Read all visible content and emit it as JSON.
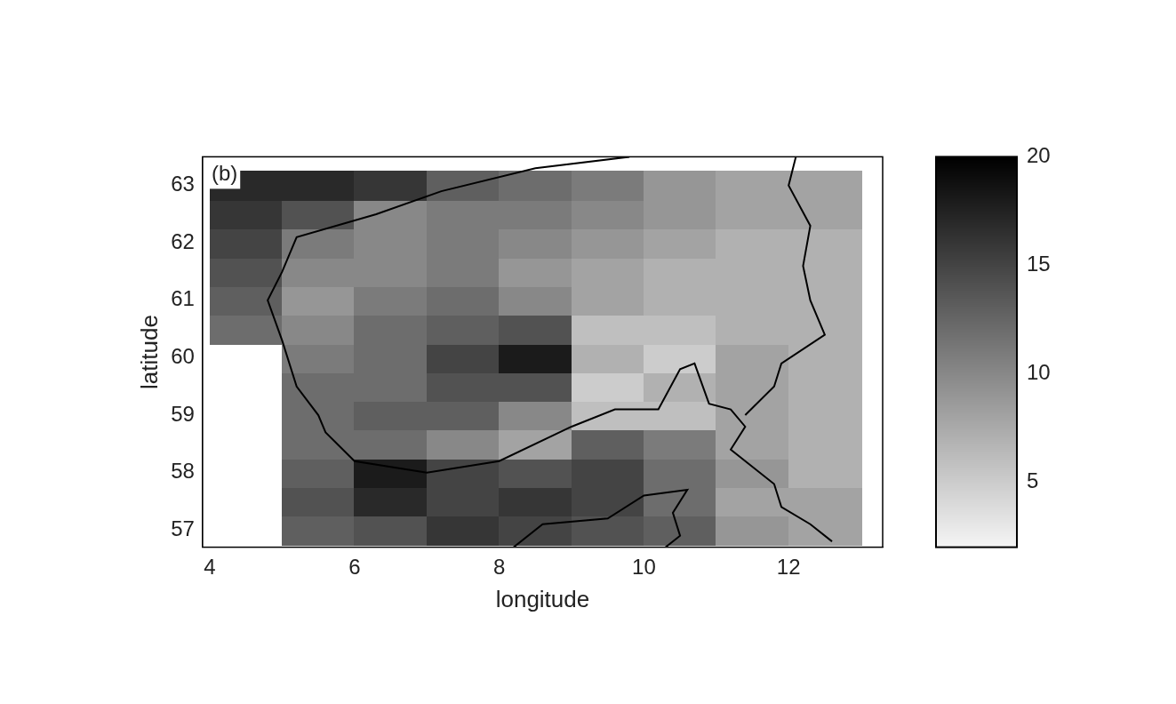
{
  "chart_data": {
    "type": "heatmap",
    "panel_label": "(b)",
    "x_label": "longitude",
    "y_label": "latitude",
    "xlim": [
      3.9,
      13.3
    ],
    "ylim": [
      56.7,
      63.5
    ],
    "xticks": [
      4,
      6,
      8,
      10,
      12
    ],
    "yticks": [
      57,
      58,
      59,
      60,
      61,
      62,
      63
    ],
    "grid": false,
    "x": [
      4.5,
      5.5,
      6.5,
      7.5,
      8.5,
      9.5,
      10.5,
      11.5,
      12.5
    ],
    "y": [
      57.0,
      57.5,
      58.0,
      58.5,
      59.0,
      59.5,
      60.0,
      60.5,
      61.0,
      61.5,
      62.0,
      62.5,
      63.0
    ],
    "values": [
      [
        null,
        13,
        14,
        16,
        15,
        14,
        13,
        9,
        8
      ],
      [
        null,
        14,
        17,
        15,
        16,
        15,
        12,
        8,
        8
      ],
      [
        null,
        13,
        18,
        15,
        14,
        15,
        12,
        9,
        7
      ],
      [
        null,
        12,
        12,
        10,
        8,
        13,
        11,
        8,
        7
      ],
      [
        null,
        12,
        13,
        13,
        10,
        6,
        6,
        8,
        7
      ],
      [
        null,
        12,
        12,
        14,
        14,
        5,
        7,
        8,
        7
      ],
      [
        null,
        11,
        12,
        15,
        18,
        7,
        5,
        8,
        7
      ],
      [
        12,
        10,
        12,
        13,
        14,
        6,
        6,
        7,
        7
      ],
      [
        13,
        9,
        11,
        12,
        10,
        8,
        7,
        7,
        7
      ],
      [
        14,
        10,
        10,
        11,
        9,
        8,
        7,
        7,
        7
      ],
      [
        15,
        11,
        10,
        11,
        10,
        9,
        8,
        7,
        7
      ],
      [
        16,
        14,
        10,
        11,
        11,
        10,
        9,
        8,
        8
      ],
      [
        17,
        17,
        16,
        13,
        12,
        11,
        9,
        8,
        8
      ]
    ],
    "colorbar": {
      "range": [
        2,
        20
      ],
      "ticks": [
        5,
        10,
        15,
        20
      ]
    },
    "outlines": [
      {
        "lon": [
          9.8,
          8.5,
          7.2,
          6.3,
          5.2,
          5.0,
          4.8,
          5.0,
          5.2,
          5.5,
          5.6,
          6.0,
          7.0,
          8.0,
          9.0,
          9.6,
          10.2,
          10.5,
          10.7,
          10.9,
          11.2,
          11.4,
          11.2,
          11.8,
          11.9,
          12.3,
          12.6
        ],
        "lat": [
          63.5,
          63.3,
          62.9,
          62.5,
          62.1,
          61.5,
          61.0,
          60.3,
          59.5,
          59.0,
          58.7,
          58.2,
          58.0,
          58.2,
          58.8,
          59.1,
          59.1,
          59.8,
          59.9,
          59.2,
          59.1,
          58.8,
          58.4,
          57.8,
          57.4,
          57.1,
          56.8
        ]
      },
      {
        "lon": [
          8.2,
          8.6,
          9.5,
          10.0,
          10.6,
          10.4,
          10.5,
          10.3
        ],
        "lat": [
          56.7,
          57.1,
          57.2,
          57.6,
          57.7,
          57.3,
          56.9,
          56.7
        ]
      },
      {
        "lon": [
          11.4,
          11.8,
          11.9,
          12.5,
          12.3,
          12.2,
          12.3,
          12.0,
          12.1
        ],
        "lat": [
          59.0,
          59.5,
          59.9,
          60.4,
          61.0,
          61.6,
          62.3,
          63.0,
          63.5
        ]
      }
    ]
  }
}
